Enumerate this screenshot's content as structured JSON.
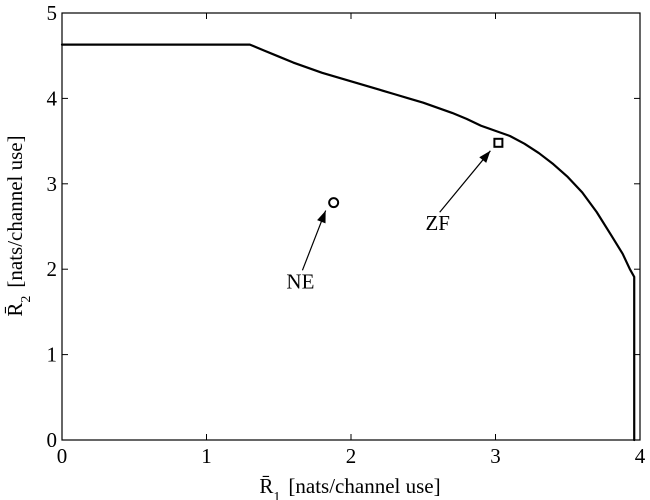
{
  "chart_data": {
    "type": "line",
    "title": "",
    "xlabel": {
      "symbol": "R̄",
      "subscript": "1",
      "unit": "[nats/channel use]"
    },
    "ylabel": {
      "symbol": "R̄",
      "subscript": "2",
      "unit": "[nats/channel use]"
    },
    "xlim": [
      0,
      4
    ],
    "ylim": [
      0,
      5
    ],
    "xticks": [
      "0",
      "1",
      "2",
      "3",
      "4"
    ],
    "yticks": [
      "0",
      "1",
      "2",
      "3",
      "4",
      "5"
    ],
    "grid": false,
    "legend": "none",
    "series": [
      {
        "x": [
          0.0,
          1.3,
          1.4,
          1.5,
          1.6,
          1.7,
          1.8,
          1.9,
          2.0,
          2.1,
          2.2,
          2.3,
          2.4,
          2.5,
          2.6,
          2.7,
          2.8,
          2.9,
          3.0,
          3.1,
          3.2,
          3.3,
          3.4,
          3.5,
          3.6,
          3.7,
          3.8,
          3.88,
          3.93,
          3.96,
          3.96
        ],
        "y": [
          4.63,
          4.63,
          4.56,
          4.49,
          4.42,
          4.36,
          4.3,
          4.25,
          4.2,
          4.15,
          4.1,
          4.05,
          4.0,
          3.95,
          3.89,
          3.83,
          3.76,
          3.68,
          3.62,
          3.56,
          3.47,
          3.36,
          3.23,
          3.08,
          2.9,
          2.67,
          2.4,
          2.18,
          2.0,
          1.91,
          0.0
        ],
        "color": "#000000"
      }
    ],
    "points": [
      {
        "label": "NE",
        "x": 1.88,
        "y": 2.78,
        "marker": "circle",
        "text_x": 1.65,
        "text_y": 1.87
      },
      {
        "label": "ZF",
        "x": 3.02,
        "y": 3.48,
        "marker": "square",
        "text_x": 2.6,
        "text_y": 2.55
      }
    ]
  }
}
